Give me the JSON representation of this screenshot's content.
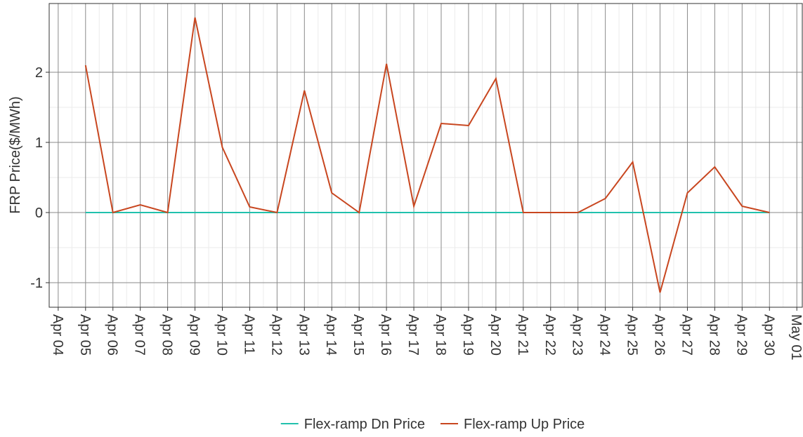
{
  "chart_data": {
    "type": "line",
    "y_label": "FRP Price($/MWh)",
    "x": [
      5,
      6,
      7,
      8,
      9,
      10,
      11,
      12,
      13,
      14,
      15,
      16,
      17,
      18,
      19,
      20,
      21,
      22,
      23,
      24,
      25,
      26,
      27,
      28,
      29,
      30
    ],
    "series": [
      {
        "name": "Flex-ramp Dn Price",
        "color": "#21c1ad",
        "values": [
          0,
          0,
          0,
          0,
          0,
          0,
          0,
          0,
          0,
          0,
          0,
          0,
          0,
          0,
          0,
          0,
          0,
          0,
          0,
          0,
          0,
          0,
          0,
          0,
          0,
          0
        ]
      },
      {
        "name": "Flex-ramp Up Price",
        "color": "#c8461f",
        "values": [
          2.1,
          0,
          0.11,
          0,
          2.78,
          0.93,
          0.08,
          0,
          1.74,
          0.28,
          0,
          2.12,
          0.09,
          1.27,
          1.24,
          1.91,
          0,
          0,
          0,
          0.2,
          0.72,
          -1.14,
          0.28,
          0.65,
          0.09,
          0
        ]
      }
    ],
    "xlim": [
      3.67,
      31.2
    ],
    "xticks": [
      {
        "value": 4,
        "label": "Apr 04"
      },
      {
        "value": 5,
        "label": "Apr 05"
      },
      {
        "value": 6,
        "label": "Apr 06"
      },
      {
        "value": 7,
        "label": "Apr 07"
      },
      {
        "value": 8,
        "label": "Apr 08"
      },
      {
        "value": 9,
        "label": "Apr 09"
      },
      {
        "value": 10,
        "label": "Apr 10"
      },
      {
        "value": 11,
        "label": "Apr 11"
      },
      {
        "value": 12,
        "label": "Apr 12"
      },
      {
        "value": 13,
        "label": "Apr 13"
      },
      {
        "value": 14,
        "label": "Apr 14"
      },
      {
        "value": 15,
        "label": "Apr 15"
      },
      {
        "value": 16,
        "label": "Apr 16"
      },
      {
        "value": 17,
        "label": "Apr 17"
      },
      {
        "value": 18,
        "label": "Apr 18"
      },
      {
        "value": 19,
        "label": "Apr 19"
      },
      {
        "value": 20,
        "label": "Apr 20"
      },
      {
        "value": 21,
        "label": "Apr 21"
      },
      {
        "value": 22,
        "label": "Apr 22"
      },
      {
        "value": 23,
        "label": "Apr 23"
      },
      {
        "value": 24,
        "label": "Apr 24"
      },
      {
        "value": 25,
        "label": "Apr 25"
      },
      {
        "value": 26,
        "label": "Apr 26"
      },
      {
        "value": 27,
        "label": "Apr 27"
      },
      {
        "value": 28,
        "label": "Apr 28"
      },
      {
        "value": 29,
        "label": "Apr 29"
      },
      {
        "value": 30,
        "label": "Apr 30"
      },
      {
        "value": 31,
        "label": "May 01"
      }
    ],
    "ylim": [
      -1.35,
      2.98
    ],
    "yticks": [
      -1,
      0,
      1,
      2
    ],
    "grid": true,
    "legend": "bottom"
  }
}
